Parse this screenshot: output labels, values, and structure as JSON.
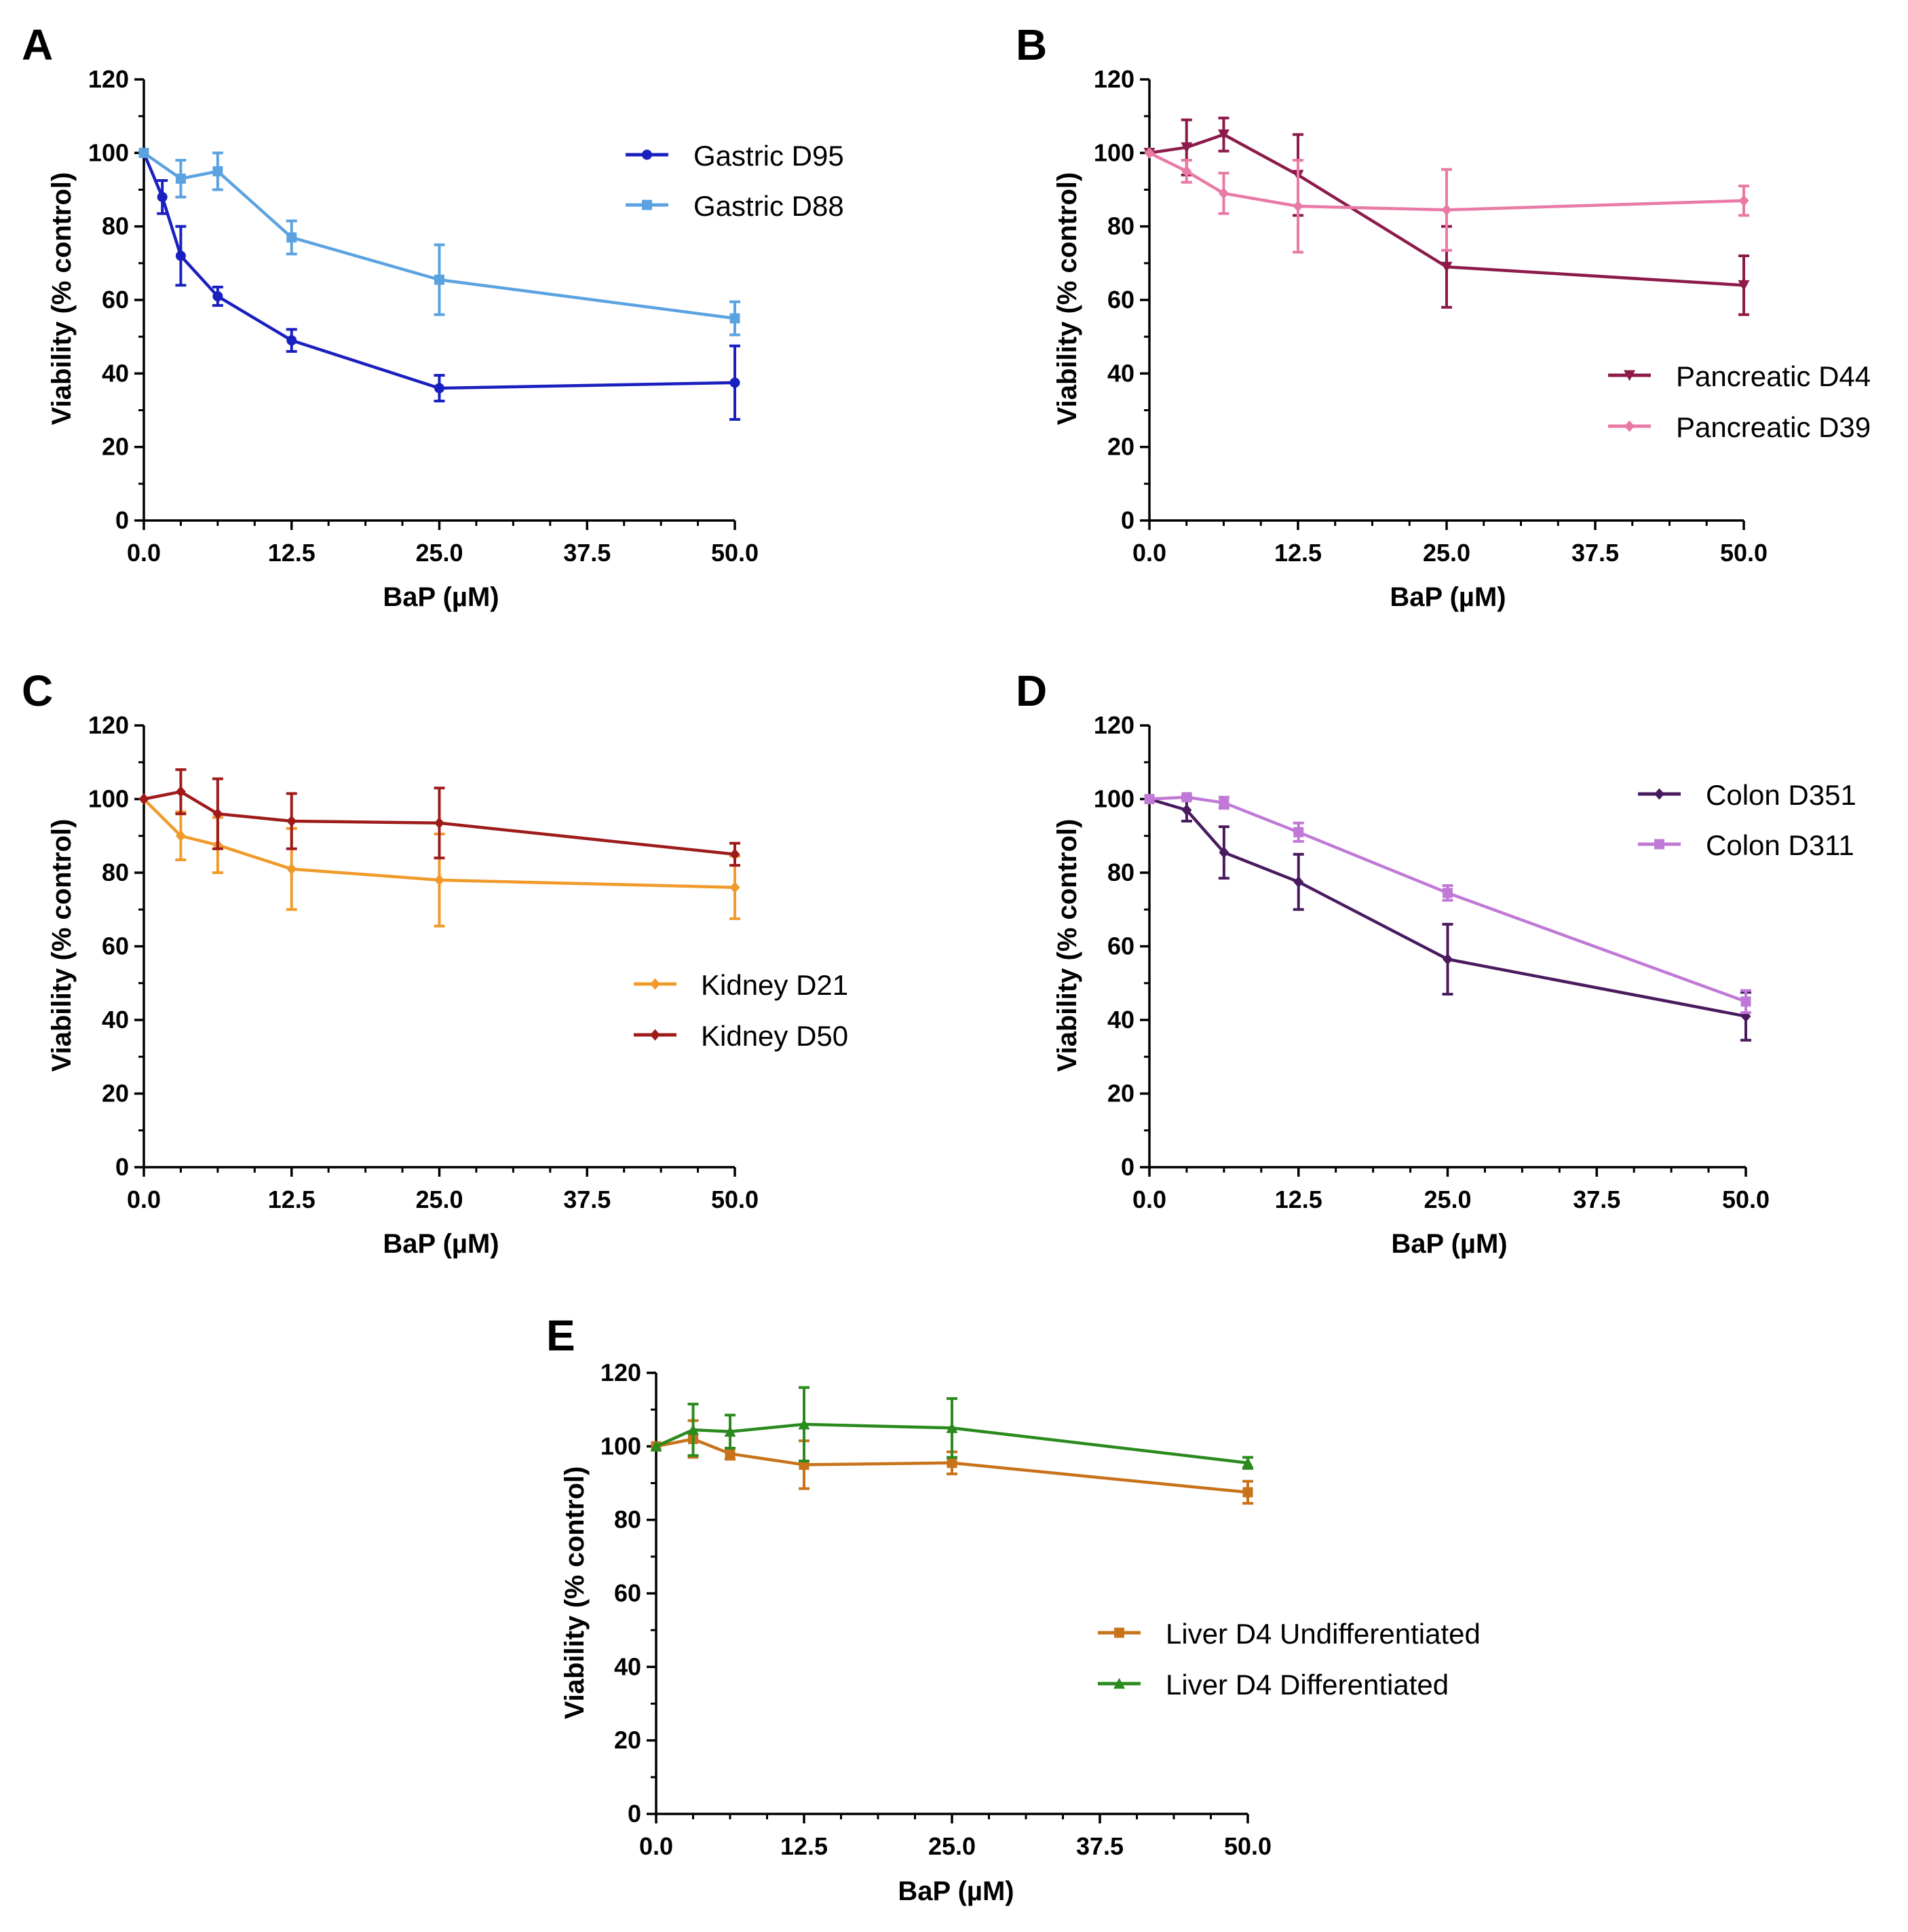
{
  "chart_data": [
    {
      "panel": "A",
      "type": "line",
      "xlabel": "BaP (µM)",
      "ylabel": "Viability (% control)",
      "xlim": [
        0,
        50
      ],
      "ylim": [
        0,
        120
      ],
      "xticks": [
        0,
        12.5,
        25,
        37.5,
        50
      ],
      "xtick_labels": [
        "0.0",
        "12.5",
        "25.0",
        "37.5",
        "50.0"
      ],
      "yticks": [
        0,
        20,
        40,
        60,
        80,
        100,
        120
      ],
      "ytick_labels": [
        "0",
        "20",
        "40",
        "60",
        "80",
        "100",
        "120"
      ],
      "legend": "top-right",
      "series": [
        {
          "name": "Gastric D95",
          "color": "#1a1fbf",
          "marker": "circle",
          "x": [
            0,
            1.5625,
            3.125,
            6.25,
            12.5,
            25,
            50
          ],
          "y": [
            100,
            88,
            72,
            61,
            49,
            36,
            37.5
          ],
          "err": [
            0,
            4.5,
            8,
            2.5,
            3,
            3.5,
            10
          ]
        },
        {
          "name": "Gastric D88",
          "color": "#5ba3e0",
          "marker": "square",
          "x": [
            0,
            3.125,
            6.25,
            12.5,
            25,
            50
          ],
          "y": [
            100,
            93,
            95,
            77,
            65.5,
            55
          ],
          "err": [
            0,
            5,
            5,
            4.5,
            9.5,
            4.5
          ]
        }
      ]
    },
    {
      "panel": "B",
      "type": "line",
      "xlabel": "BaP (µM)",
      "ylabel": "Viability (% control)",
      "xlim": [
        0,
        50
      ],
      "ylim": [
        0,
        120
      ],
      "xticks": [
        0,
        12.5,
        25,
        37.5,
        50
      ],
      "xtick_labels": [
        "0.0",
        "12.5",
        "25.0",
        "37.5",
        "50.0"
      ],
      "yticks": [
        0,
        20,
        40,
        60,
        80,
        100,
        120
      ],
      "ytick_labels": [
        "0",
        "20",
        "40",
        "60",
        "80",
        "100",
        "120"
      ],
      "legend": "bottom-right",
      "series": [
        {
          "name": "Pancreatic D44",
          "color": "#8c1a4a",
          "marker": "triangle-down",
          "x": [
            0,
            3.125,
            6.25,
            12.5,
            25,
            50
          ],
          "y": [
            100,
            101.5,
            105,
            94,
            69,
            64
          ],
          "err": [
            0,
            7.5,
            4.5,
            11,
            11,
            8
          ]
        },
        {
          "name": "Pancreatic D39",
          "color": "#e87aa5",
          "marker": "diamond",
          "x": [
            0,
            3.125,
            6.25,
            12.5,
            25,
            50
          ],
          "y": [
            100,
            95,
            89,
            85.5,
            84.5,
            87
          ],
          "err": [
            0,
            3,
            5.5,
            12.5,
            11,
            4
          ]
        }
      ]
    },
    {
      "panel": "C",
      "type": "line",
      "xlabel": "BaP (µM)",
      "ylabel": "Viability (% control)",
      "xlim": [
        0,
        50
      ],
      "ylim": [
        0,
        120
      ],
      "xticks": [
        0,
        12.5,
        25,
        37.5,
        50
      ],
      "xtick_labels": [
        "0.0",
        "12.5",
        "25.0",
        "37.5",
        "50.0"
      ],
      "yticks": [
        0,
        20,
        40,
        60,
        80,
        100,
        120
      ],
      "ytick_labels": [
        "0",
        "20",
        "40",
        "60",
        "80",
        "100",
        "120"
      ],
      "legend": "center-right",
      "series": [
        {
          "name": "Kidney D21",
          "color": "#f09a2a",
          "marker": "diamond",
          "x": [
            0,
            3.125,
            6.25,
            12.5,
            25,
            50
          ],
          "y": [
            100,
            90,
            87.5,
            81,
            78,
            76
          ],
          "err": [
            0,
            6.5,
            7.5,
            11,
            12.5,
            8.5
          ]
        },
        {
          "name": "Kidney D50",
          "color": "#9e1b1b",
          "marker": "diamond",
          "x": [
            0,
            3.125,
            6.25,
            12.5,
            25,
            50
          ],
          "y": [
            100,
            102,
            96,
            94,
            93.5,
            85
          ],
          "err": [
            0,
            6,
            9.5,
            7.5,
            9.5,
            3
          ]
        }
      ]
    },
    {
      "panel": "D",
      "type": "line",
      "xlabel": "BaP (µM)",
      "ylabel": "Viability (% control)",
      "xlim": [
        0,
        50
      ],
      "ylim": [
        0,
        120
      ],
      "xticks": [
        0,
        12.5,
        25,
        37.5,
        50
      ],
      "xtick_labels": [
        "0.0",
        "12.5",
        "25.0",
        "37.5",
        "50.0"
      ],
      "yticks": [
        0,
        20,
        40,
        60,
        80,
        100,
        120
      ],
      "ytick_labels": [
        "0",
        "20",
        "40",
        "60",
        "80",
        "100",
        "120"
      ],
      "legend": "top-right",
      "series": [
        {
          "name": "Colon D351",
          "color": "#4a1a5e",
          "marker": "diamond",
          "x": [
            0,
            3.125,
            6.25,
            12.5,
            25,
            50
          ],
          "y": [
            100,
            97,
            85.5,
            77.5,
            56.5,
            41
          ],
          "err": [
            0,
            3,
            7,
            7.5,
            9.5,
            6.5
          ]
        },
        {
          "name": "Colon D311",
          "color": "#c079d6",
          "marker": "square",
          "x": [
            0,
            3.125,
            6.25,
            12.5,
            25,
            50
          ],
          "y": [
            100,
            100.5,
            99,
            91,
            74.5,
            45
          ],
          "err": [
            0,
            0.5,
            1.5,
            2.5,
            2,
            3
          ]
        }
      ]
    },
    {
      "panel": "E",
      "type": "line",
      "xlabel": "BaP (µM)",
      "ylabel": "Viability (% control)",
      "xlim": [
        0,
        50
      ],
      "ylim": [
        0,
        120
      ],
      "xticks": [
        0,
        12.5,
        25,
        37.5,
        50
      ],
      "xtick_labels": [
        "0.0",
        "12.5",
        "25.0",
        "37.5",
        "50.0"
      ],
      "yticks": [
        0,
        20,
        40,
        60,
        80,
        100,
        120
      ],
      "ytick_labels": [
        "0",
        "20",
        "40",
        "60",
        "80",
        "100",
        "120"
      ],
      "legend": "center-right",
      "series": [
        {
          "name": "Liver D4 Undifferentiated",
          "color": "#c8731a",
          "marker": "square",
          "x": [
            0,
            3.125,
            6.25,
            12.5,
            25,
            50
          ],
          "y": [
            100,
            102,
            98,
            95,
            95.5,
            87.5
          ],
          "err": [
            0,
            5,
            1.5,
            6.5,
            3,
            3
          ]
        },
        {
          "name": "Liver D4 Differentiated",
          "color": "#2a8a1e",
          "marker": "triangle-up",
          "x": [
            0,
            3.125,
            6.25,
            12.5,
            25,
            50
          ],
          "y": [
            100,
            104.5,
            104,
            106,
            105,
            95.5
          ],
          "err": [
            0,
            7,
            4.5,
            10,
            8,
            1.5
          ]
        }
      ]
    }
  ]
}
